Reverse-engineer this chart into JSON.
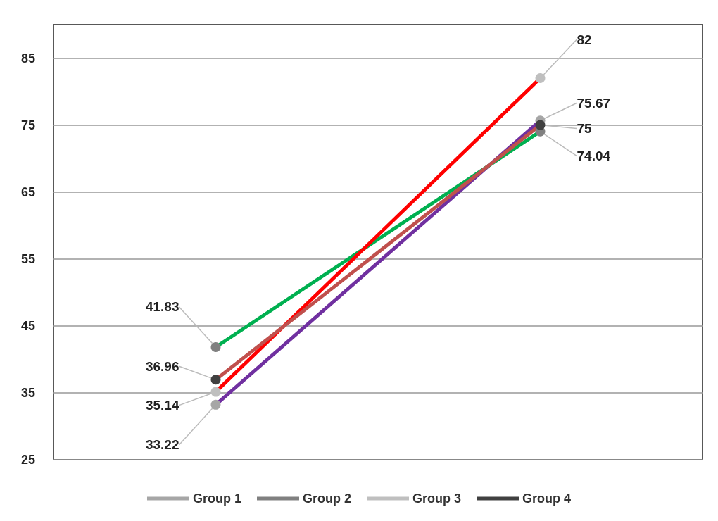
{
  "chart_data": {
    "type": "line",
    "categories": [
      null,
      null
    ],
    "series": [
      {
        "name": "Group 1",
        "color": "#7030a0",
        "colors": [
          "#a6a6a6",
          "#a6a6a6"
        ],
        "values": [
          33.22,
          75.67
        ]
      },
      {
        "name": "Group 2",
        "color": "#00b050",
        "colors": [
          "#808080",
          "#808080"
        ],
        "values": [
          41.83,
          74.04
        ]
      },
      {
        "name": "Group 3",
        "color": "#ff0000",
        "colors": [
          "#bfbfbf",
          "#bfbfbf"
        ],
        "values": [
          35.14,
          82
        ]
      },
      {
        "name": "Group 4",
        "color": "#c0504d",
        "colors": [
          "#404040",
          "#404040"
        ],
        "values": [
          36.96,
          75
        ]
      }
    ],
    "ylim": [
      25,
      90
    ],
    "yticks": [
      25,
      35,
      45,
      55,
      65,
      75,
      85
    ],
    "grid": "y",
    "legend": "bottom",
    "marker": "circle",
    "line_style": "solid",
    "data_labels": true
  }
}
